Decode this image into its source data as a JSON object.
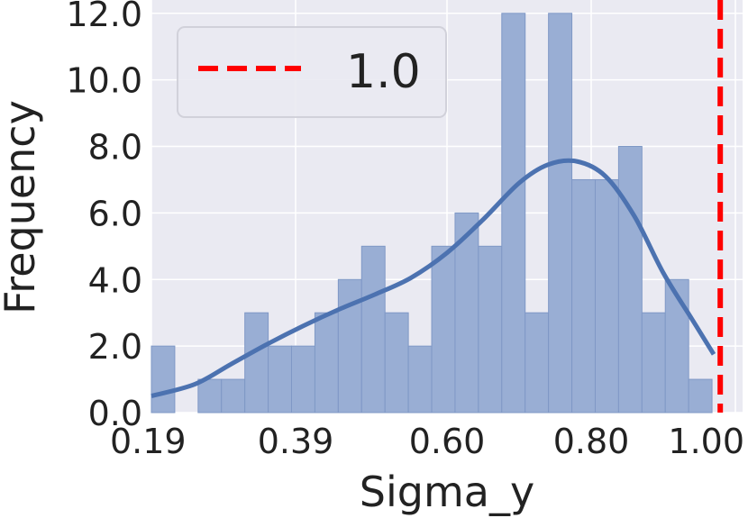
{
  "chart_data": {
    "type": "bar",
    "xlabel": "Sigma_y",
    "ylabel": "Frequency",
    "xlim": [
      0.19,
      1.01
    ],
    "ylim": [
      0,
      12.4
    ],
    "x_ticks": [
      "0.19",
      "0.39",
      "0.60",
      "0.80",
      "1.00"
    ],
    "y_ticks": [
      "0.0",
      "2.0",
      "4.0",
      "6.0",
      "8.0",
      "10.0",
      "12.0"
    ],
    "bin_width": 0.0324,
    "bins": [
      {
        "x0": 0.19,
        "count": 2
      },
      {
        "x0": 0.2224,
        "count": 0
      },
      {
        "x0": 0.2548,
        "count": 1
      },
      {
        "x0": 0.2872,
        "count": 1
      },
      {
        "x0": 0.3196,
        "count": 3
      },
      {
        "x0": 0.352,
        "count": 2
      },
      {
        "x0": 0.3844,
        "count": 2
      },
      {
        "x0": 0.4168,
        "count": 3
      },
      {
        "x0": 0.4492,
        "count": 4
      },
      {
        "x0": 0.4816,
        "count": 5
      },
      {
        "x0": 0.514,
        "count": 3
      },
      {
        "x0": 0.5464,
        "count": 2
      },
      {
        "x0": 0.5788,
        "count": 5
      },
      {
        "x0": 0.6112,
        "count": 6
      },
      {
        "x0": 0.6436,
        "count": 5
      },
      {
        "x0": 0.676,
        "count": 12
      },
      {
        "x0": 0.7084,
        "count": 3
      },
      {
        "x0": 0.7408,
        "count": 12
      },
      {
        "x0": 0.7732,
        "count": 7
      },
      {
        "x0": 0.8056,
        "count": 7
      },
      {
        "x0": 0.838,
        "count": 8
      },
      {
        "x0": 0.8704,
        "count": 3
      },
      {
        "x0": 0.9028,
        "count": 4
      },
      {
        "x0": 0.9352,
        "count": 1
      }
    ],
    "kde": {
      "x": [
        0.19,
        0.25,
        0.3,
        0.35,
        0.4,
        0.45,
        0.5,
        0.55,
        0.6,
        0.65,
        0.7,
        0.74,
        0.78,
        0.82,
        0.86,
        0.9,
        0.94,
        0.97
      ],
      "y": [
        0.5,
        0.85,
        1.45,
        2.05,
        2.6,
        3.1,
        3.55,
        4.05,
        4.8,
        5.8,
        6.9,
        7.45,
        7.55,
        7.1,
        5.9,
        4.2,
        2.8,
        1.75
      ]
    },
    "reference_line": {
      "x": 0.979,
      "label": "1.0",
      "color": "#ff0000"
    },
    "colors": {
      "bar": "#99aed4",
      "bar_edge": "#7f98c6",
      "kde": "#4c72b0",
      "background": "#eaeaf2",
      "grid": "#ffffff"
    },
    "grid": true,
    "legend_position": "top-left"
  }
}
